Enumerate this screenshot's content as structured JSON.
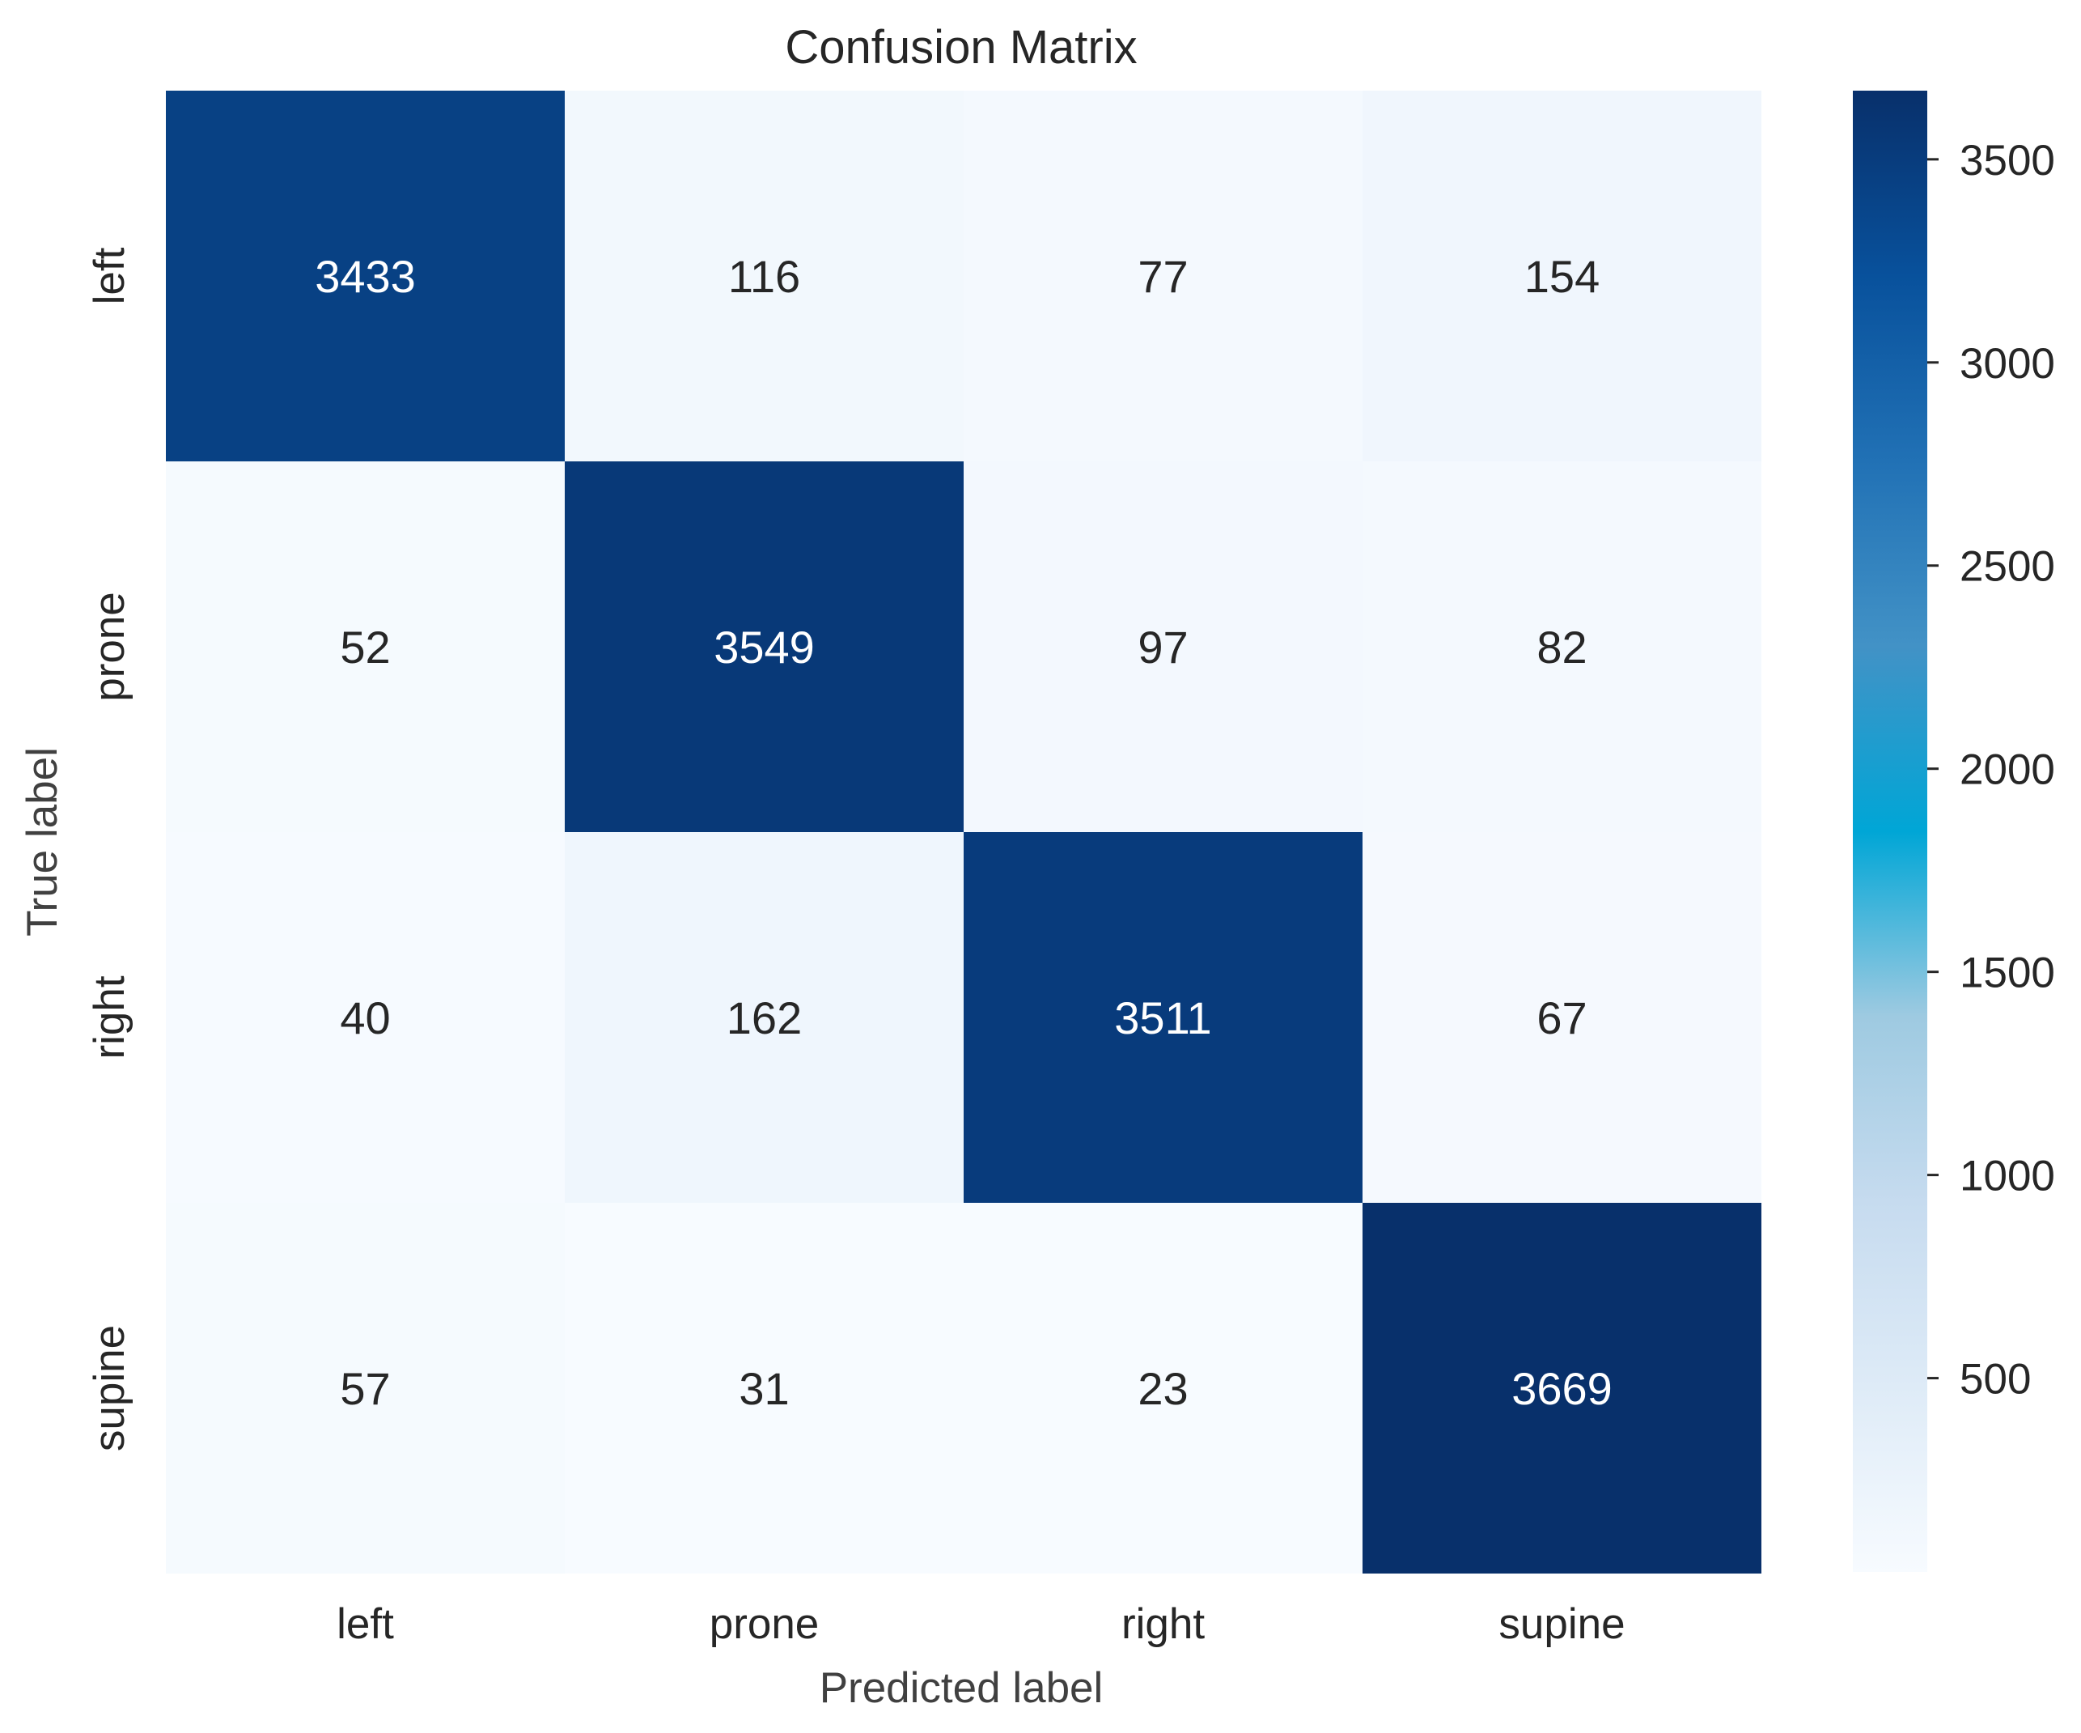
{
  "chart_data": {
    "type": "heatmap",
    "title": "Confusion Matrix",
    "xlabel": "Predicted label",
    "ylabel": "True label",
    "x_categories": [
      "left",
      "prone",
      "right",
      "supine"
    ],
    "y_categories": [
      "left",
      "prone",
      "right",
      "supine"
    ],
    "values": [
      [
        3433,
        116,
        77,
        154
      ],
      [
        52,
        3549,
        97,
        82
      ],
      [
        40,
        162,
        3511,
        67
      ],
      [
        57,
        31,
        23,
        3669
      ]
    ],
    "colormap": "Blues",
    "color_range": [
      23,
      3669
    ],
    "colorbar_ticks": [
      500,
      1000,
      1500,
      2000,
      2500,
      3000,
      3500
    ],
    "colors": {
      "low": "#f7fbff",
      "high": "#08306b",
      "text_dark": "#262626",
      "text_light": "#ffffff"
    }
  }
}
